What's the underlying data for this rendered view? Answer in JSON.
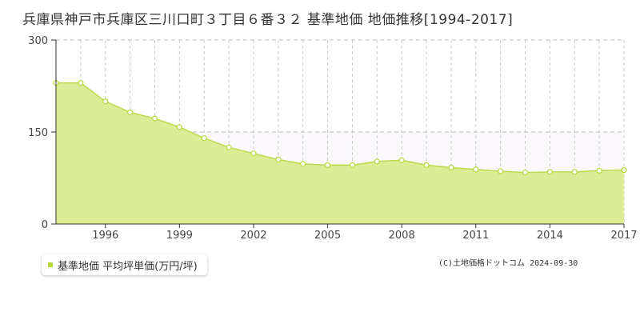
{
  "title": "兵庫県神戸市兵庫区三川口町３丁目６番３２ 基準地価 地価推移[1994-2017]",
  "legend_label": "基準地価 平均坪単価(万円/坪)",
  "credit": "(C)土地価格ドットコム 2024-09-30",
  "colors": {
    "fill": "#dcec95",
    "line": "#bcd94d",
    "marker_stroke": "#b5d93c",
    "upper_band": "#faf8fb"
  },
  "chart_data": {
    "type": "area",
    "x": [
      1994,
      1995,
      1996,
      1997,
      1998,
      1999,
      2000,
      2001,
      2002,
      2003,
      2004,
      2005,
      2006,
      2007,
      2008,
      2009,
      2010,
      2011,
      2012,
      2013,
      2014,
      2015,
      2016,
      2017
    ],
    "series": [
      {
        "name": "基準地価 平均坪単価(万円/坪)",
        "values": [
          230,
          230,
          200,
          182,
          172,
          158,
          140,
          125,
          115,
          105,
          98,
          96,
          96,
          102,
          104,
          96,
          92,
          89,
          86,
          84,
          85,
          85,
          87,
          88
        ]
      }
    ],
    "xticks": [
      "1996",
      "1999",
      "2002",
      "2005",
      "2008",
      "2011",
      "2014",
      "2017"
    ],
    "yticks": [
      "0",
      "150",
      "300"
    ],
    "ylim": [
      0,
      300
    ],
    "xlim": [
      1994,
      2017
    ],
    "grid": true
  }
}
